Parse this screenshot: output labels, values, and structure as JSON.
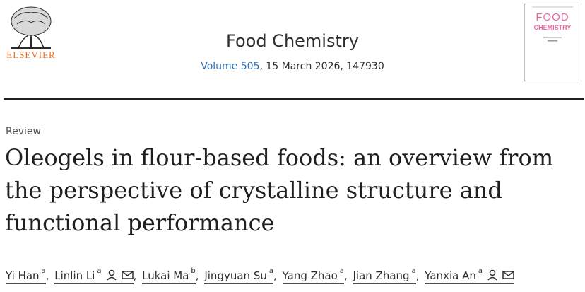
{
  "publisher": {
    "name": "ELSEVIER"
  },
  "journal": {
    "title": "Food Chemistry",
    "volume_link": "Volume 505",
    "issue_details": ", 15 March 2026, 147930",
    "cover": {
      "line1": "FOOD",
      "line2": "CHEMISTRY"
    }
  },
  "article": {
    "type": "Review",
    "title": "Oleogels in flour-based foods: an overview from the perspective of crystalline structure and functional performance"
  },
  "authors": [
    {
      "name": "Yi Han",
      "aff": "a",
      "corresponding": false
    },
    {
      "name": "Linlin Li",
      "aff": "a",
      "corresponding": true
    },
    {
      "name": "Lukai Ma",
      "aff": "b",
      "corresponding": false
    },
    {
      "name": "Jingyuan Su",
      "aff": "a",
      "corresponding": false
    },
    {
      "name": "Yang Zhao",
      "aff": "a",
      "corresponding": false
    },
    {
      "name": "Jian Zhang",
      "aff": "a",
      "corresponding": false
    },
    {
      "name": "Yanxia An",
      "aff": "a",
      "corresponding": true
    }
  ],
  "icons": {
    "person": "person-icon",
    "mail": "envelope-icon"
  },
  "colors": {
    "link": "#2e6db4",
    "brand": "#e9711c",
    "cover": "#e86aa0",
    "text": "#1f1f1f"
  }
}
